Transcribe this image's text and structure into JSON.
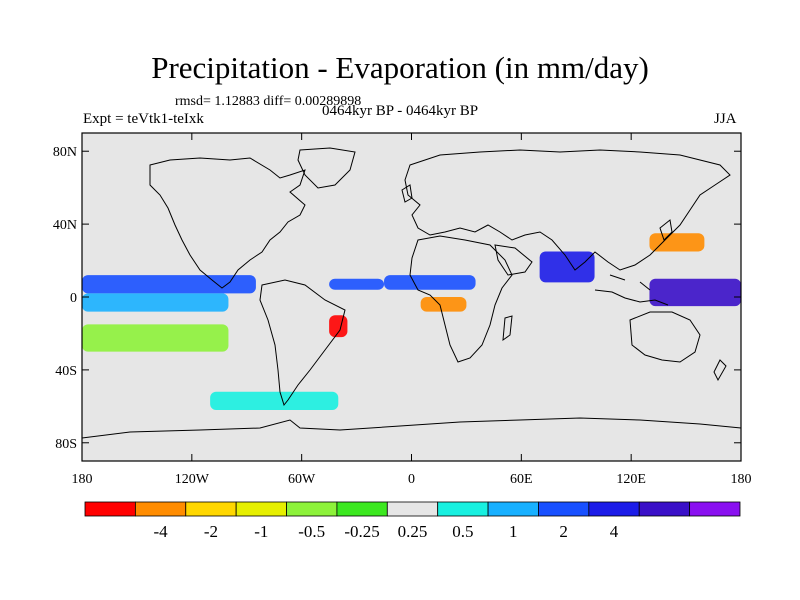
{
  "title": "Precipitation - Evaporation (in mm/day)",
  "stats": "rmsd= 1.12883  diff= 0.00289898",
  "expt_label": "Expt = teVtk1-teIxk",
  "period_label": "0464kyr BP - 0464kyr BP",
  "season": "JJA",
  "y_ticks": [
    {
      "value": 80,
      "label": "80N"
    },
    {
      "value": 40,
      "label": "40N"
    },
    {
      "value": 0,
      "label": "0"
    },
    {
      "value": -40,
      "label": "40S"
    },
    {
      "value": -80,
      "label": "80S"
    }
  ],
  "x_ticks": [
    {
      "value": -180,
      "label": "180"
    },
    {
      "value": -120,
      "label": "120W"
    },
    {
      "value": -60,
      "label": "60W"
    },
    {
      "value": 0,
      "label": "0"
    },
    {
      "value": 60,
      "label": "60E"
    },
    {
      "value": 120,
      "label": "120E"
    },
    {
      "value": 180,
      "label": "180"
    }
  ],
  "lon_range": [
    -180,
    180
  ],
  "lat_range": [
    -90,
    90
  ],
  "colorbar": {
    "colors": [
      "#ff0000",
      "#ff8c00",
      "#ffd700",
      "#e6ef00",
      "#8df23a",
      "#3ce820",
      "#e6e6e6",
      "#18f0e0",
      "#18b0ff",
      "#1850ff",
      "#1c1ce8",
      "#3a10c8",
      "#8a10f0"
    ],
    "labels": [
      "-4",
      "-2",
      "-1",
      "-0.5",
      "-0.25",
      "0.25",
      "0.5",
      "1",
      "2",
      "4"
    ]
  },
  "field_bands": [
    {
      "lat": [
        2,
        12
      ],
      "lon": [
        -180,
        -85
      ],
      "level": 9
    },
    {
      "lat": [
        -8,
        2
      ],
      "lon": [
        -180,
        -100
      ],
      "level": 8
    },
    {
      "lat": [
        4,
        10
      ],
      "lon": [
        -45,
        -15
      ],
      "level": 9
    },
    {
      "lat": [
        4,
        12
      ],
      "lon": [
        -15,
        35
      ],
      "level": 9
    },
    {
      "lat": [
        -8,
        0
      ],
      "lon": [
        5,
        30
      ],
      "level": 1
    },
    {
      "lat": [
        -22,
        -10
      ],
      "lon": [
        -45,
        -35
      ],
      "level": 0
    },
    {
      "lat": [
        8,
        25
      ],
      "lon": [
        70,
        100
      ],
      "level": 10
    },
    {
      "lat": [
        -5,
        10
      ],
      "lon": [
        130,
        180
      ],
      "level": 11
    },
    {
      "lat": [
        25,
        35
      ],
      "lon": [
        130,
        160
      ],
      "level": 1
    },
    {
      "lat": [
        -30,
        -15
      ],
      "lon": [
        -180,
        -100
      ],
      "level": 4
    },
    {
      "lat": [
        -62,
        -52
      ],
      "lon": [
        -110,
        -40
      ],
      "level": 7
    }
  ]
}
